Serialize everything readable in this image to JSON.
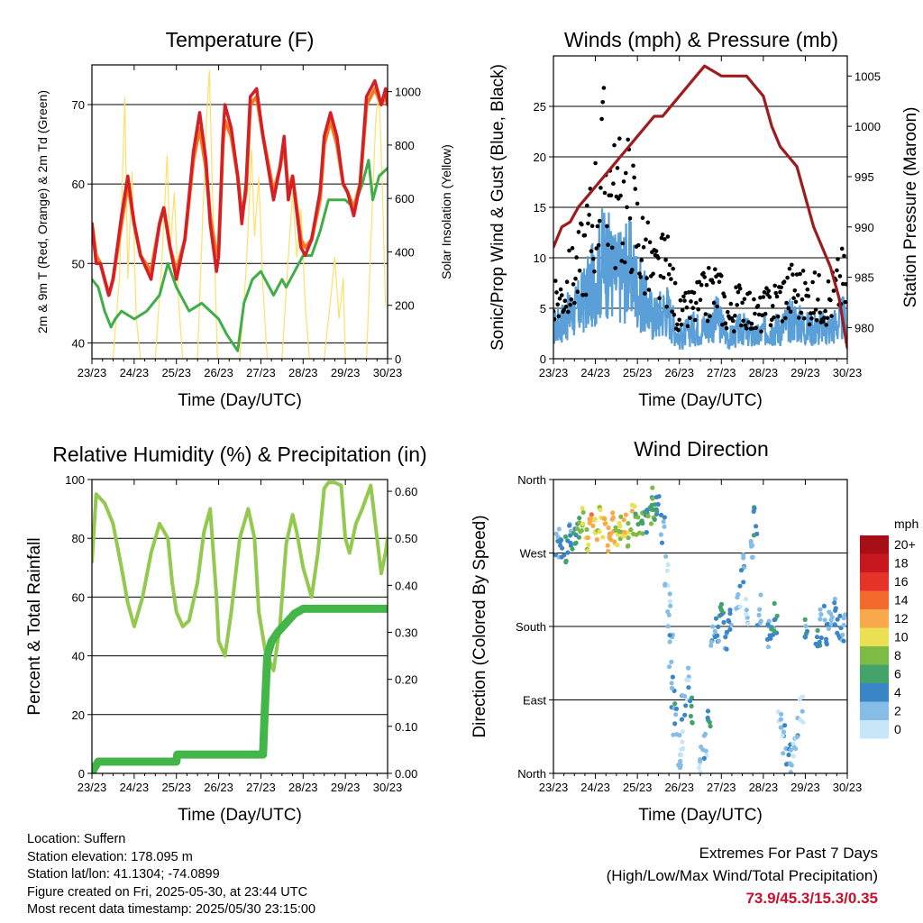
{
  "colors": {
    "temp2m": "#d41f26",
    "temp9m": "#f47a20",
    "dewpoint": "#3fae49",
    "solar": "#ffe066",
    "wind": "#5a9fd8",
    "gust": "#000000",
    "pressure": "#9e1b1e",
    "rh": "#93c94e",
    "rain": "#43b649",
    "extremes": "#c8102e"
  },
  "chart_data": [
    {
      "type": "line",
      "title": "Temperature (F)",
      "xlabel": "Time (Day/UTC)",
      "ylabel": "2m & 9m T (Red, Orange) & 2m Td (Green)",
      "y2label": "Solar Insolation (Yellow)",
      "x_ticks": [
        "23/23",
        "24/23",
        "25/23",
        "26/23",
        "27/23",
        "28/23",
        "29/23",
        "30/23"
      ],
      "xlim": [
        0,
        7
      ],
      "ylim": [
        38,
        75
      ],
      "y_ticks": [
        40,
        50,
        60,
        70
      ],
      "y2lim": [
        0,
        1100
      ],
      "y2_ticks": [
        0,
        200,
        400,
        600,
        800,
        1000
      ],
      "grid": true,
      "series": [
        {
          "key": "t2m",
          "x": [
            0,
            0.1,
            0.2,
            0.4,
            0.5,
            0.7,
            0.85,
            1.0,
            1.15,
            1.4,
            1.6,
            1.7,
            1.85,
            2.0,
            2.2,
            2.4,
            2.55,
            2.7,
            2.8,
            2.95,
            3.0,
            3.1,
            3.15,
            3.3,
            3.45,
            3.55,
            3.65,
            3.75,
            3.9,
            4.05,
            4.3,
            4.45,
            4.55,
            4.65,
            4.75,
            4.95,
            5.05,
            5.2,
            5.4,
            5.5,
            5.65,
            5.8,
            5.95,
            6.05,
            6.2,
            6.35,
            6.5,
            6.7,
            6.85,
            6.95,
            7.0
          ],
          "y": [
            55,
            50,
            50,
            46,
            48,
            56,
            61,
            55,
            51,
            48,
            55,
            57,
            52,
            48,
            53,
            64,
            69,
            63,
            55,
            49,
            51,
            66,
            70,
            67,
            61,
            55,
            60,
            71,
            72,
            66,
            58,
            62,
            66,
            58,
            61,
            52,
            51,
            53,
            59,
            66,
            69,
            66,
            60,
            59,
            56,
            60,
            71,
            73,
            70,
            72,
            70
          ]
        },
        {
          "key": "t9m",
          "x": [
            0,
            0.1,
            0.2,
            0.4,
            0.5,
            0.7,
            0.85,
            1.0,
            1.15,
            1.4,
            1.6,
            1.7,
            1.85,
            2.0,
            2.2,
            2.4,
            2.55,
            2.7,
            2.8,
            2.95,
            3.0,
            3.1,
            3.15,
            3.3,
            3.45,
            3.55,
            3.65,
            3.75,
            3.9,
            4.05,
            4.3,
            4.45,
            4.55,
            4.65,
            4.75,
            4.95,
            5.05,
            5.2,
            5.4,
            5.5,
            5.65,
            5.8,
            5.95,
            6.05,
            6.2,
            6.35,
            6.5,
            6.7,
            6.85,
            6.95,
            7.0
          ],
          "y": [
            55,
            51,
            50,
            46,
            48,
            55,
            60,
            55,
            51,
            49,
            55,
            57,
            52,
            49,
            53,
            63,
            67,
            62,
            56,
            51,
            52,
            65,
            68,
            66,
            61,
            56,
            59,
            70,
            71,
            66,
            59,
            62,
            65,
            59,
            61,
            53,
            52,
            53,
            58,
            65,
            68,
            65,
            60,
            59,
            57,
            60,
            70,
            72,
            70,
            71,
            70
          ]
        },
        {
          "key": "td",
          "x": [
            0,
            0.15,
            0.3,
            0.45,
            0.55,
            0.7,
            1.0,
            1.3,
            1.6,
            1.8,
            2.0,
            2.3,
            2.6,
            2.8,
            3.0,
            3.2,
            3.45,
            3.6,
            3.8,
            4.0,
            4.3,
            4.5,
            4.6,
            4.8,
            5.0,
            5.2,
            5.4,
            5.6,
            5.8,
            6.0,
            6.2,
            6.4,
            6.55,
            6.65,
            6.8,
            7.0
          ],
          "y": [
            48,
            47,
            44,
            42,
            43,
            44,
            43,
            44,
            46,
            50,
            47,
            44,
            45,
            44,
            43,
            41,
            39,
            45,
            48,
            49,
            46,
            48,
            47,
            49,
            51,
            51,
            54,
            58,
            58,
            58,
            57,
            60,
            63,
            58,
            61,
            62
          ]
        },
        {
          "key": "solar",
          "axis": "y2",
          "x": [
            0.5,
            0.65,
            0.78,
            0.85,
            0.95,
            1.05,
            1.15,
            1.5,
            1.65,
            1.78,
            1.85,
            1.95,
            2.05,
            2.15,
            2.5,
            2.62,
            2.72,
            2.78,
            2.85,
            2.92,
            2.97,
            3.5,
            3.65,
            3.78,
            3.85,
            3.95,
            4.05,
            4.15,
            4.5,
            4.62,
            4.75,
            4.85,
            4.95,
            5.05,
            5.15,
            5.5,
            5.65,
            5.75,
            5.85,
            5.95,
            6.0,
            6.5,
            6.6,
            6.72,
            6.8,
            6.88,
            6.95
          ],
          "y": [
            0,
            300,
            980,
            300,
            700,
            150,
            0,
            0,
            350,
            760,
            400,
            620,
            220,
            0,
            0,
            520,
            920,
            1080,
            640,
            300,
            0,
            0,
            330,
            780,
            460,
            680,
            260,
            0,
            0,
            310,
            620,
            380,
            560,
            200,
            0,
            0,
            220,
            380,
            150,
            300,
            0,
            0,
            420,
            900,
            1000,
            620,
            200
          ]
        }
      ]
    },
    {
      "type": "scatter",
      "title": "Winds (mph) & Pressure (mb)",
      "xlabel": "Time (Day/UTC)",
      "ylabel": "Sonic/Prop Wind & Gust (Blue, Black)",
      "y2label": "Station Pressure (Maroon)",
      "x_ticks": [
        "23/23",
        "24/23",
        "25/23",
        "26/23",
        "27/23",
        "28/23",
        "29/23",
        "30/23"
      ],
      "xlim": [
        0,
        7
      ],
      "ylim": [
        0,
        30
      ],
      "y_ticks": [
        0,
        5,
        10,
        15,
        20,
        25
      ],
      "y2lim": [
        976.9,
        1007
      ],
      "y2_ticks": [
        980,
        985,
        990,
        995,
        1000,
        1005
      ],
      "grid": true,
      "series": [
        {
          "key": "wind",
          "x": [
            0,
            0.3,
            0.6,
            0.9,
            1.2,
            1.5,
            1.8,
            2.1,
            2.4,
            2.7,
            3.0,
            3.3,
            3.6,
            3.9,
            4.2,
            4.5,
            4.8,
            5.1,
            5.4,
            5.7,
            6.0,
            6.3,
            6.6,
            6.9,
            7.0
          ],
          "y": [
            3,
            4,
            5,
            7,
            10,
            8,
            9,
            6,
            4,
            5,
            2,
            3,
            3,
            4,
            2,
            3,
            2,
            3,
            3,
            4,
            3,
            3,
            3,
            4,
            3
          ]
        },
        {
          "key": "gust",
          "x": [
            0,
            0.3,
            0.6,
            0.9,
            1.2,
            1.5,
            1.8,
            2.1,
            2.4,
            2.7,
            3.0,
            3.3,
            3.6,
            3.9,
            4.2,
            4.5,
            4.8,
            5.1,
            5.4,
            5.7,
            6.0,
            6.3,
            6.6,
            6.9,
            7.0
          ],
          "y": [
            5,
            7,
            9,
            13,
            19,
            15,
            16,
            11,
            8,
            9,
            4,
            5,
            6,
            7,
            4,
            6,
            4,
            5,
            6,
            7,
            6,
            6,
            6,
            8,
            6
          ]
        },
        {
          "key": "pressure",
          "axis": "y2",
          "x": [
            0,
            0.2,
            0.4,
            0.6,
            0.8,
            1.0,
            1.2,
            1.4,
            1.6,
            1.8,
            2.0,
            2.2,
            2.4,
            2.6,
            2.8,
            3.0,
            3.2,
            3.4,
            3.6,
            3.8,
            4.0,
            4.2,
            4.4,
            4.6,
            4.8,
            5.0,
            5.2,
            5.4,
            5.6,
            5.8,
            6.0,
            6.2,
            6.4,
            6.6,
            6.8,
            7.0
          ],
          "y": [
            988,
            990,
            990.5,
            992,
            993,
            994,
            995,
            996,
            997,
            998,
            999,
            1000,
            1001,
            1001,
            1002,
            1003,
            1004,
            1005,
            1006,
            1005.5,
            1005,
            1005,
            1005,
            1005,
            1004,
            1003,
            1000,
            998,
            997,
            996,
            993,
            990,
            988,
            986,
            983,
            978
          ]
        }
      ]
    },
    {
      "type": "line",
      "title": "Relative Humidity (%) & Precipitation (in)",
      "xlabel": "Time (Day/UTC)",
      "ylabel": "Percent & Total Rainfall",
      "x_ticks": [
        "23/23",
        "24/23",
        "25/23",
        "26/23",
        "27/23",
        "28/23",
        "29/23",
        "30/23"
      ],
      "xlim": [
        0,
        7
      ],
      "ylim": [
        0,
        100
      ],
      "y_ticks": [
        0,
        20,
        40,
        60,
        80,
        100
      ],
      "y2lim": [
        0,
        0.625
      ],
      "y2_ticks": [
        0.0,
        0.1,
        0.2,
        0.3,
        0.4,
        0.5,
        0.6
      ],
      "grid": true,
      "series": [
        {
          "key": "rh",
          "x": [
            0,
            0.1,
            0.3,
            0.5,
            0.7,
            0.85,
            1.0,
            1.2,
            1.4,
            1.6,
            1.8,
            1.9,
            2.0,
            2.15,
            2.3,
            2.5,
            2.65,
            2.8,
            2.95,
            3.0,
            3.15,
            3.3,
            3.5,
            3.7,
            3.85,
            3.95,
            4.1,
            4.3,
            4.45,
            4.6,
            4.75,
            4.85,
            5.0,
            5.2,
            5.35,
            5.5,
            5.6,
            5.75,
            5.9,
            6.0,
            6.1,
            6.25,
            6.4,
            6.6,
            6.75,
            6.85,
            6.95,
            7.0
          ],
          "y": [
            72,
            95,
            92,
            85,
            70,
            58,
            50,
            60,
            75,
            85,
            80,
            65,
            55,
            50,
            52,
            65,
            82,
            90,
            60,
            45,
            40,
            55,
            80,
            90,
            80,
            55,
            42,
            35,
            50,
            78,
            88,
            82,
            70,
            60,
            75,
            97,
            99,
            99,
            98,
            80,
            75,
            85,
            90,
            98,
            80,
            68,
            75,
            80
          ]
        },
        {
          "key": "rain",
          "axis": "y2",
          "x": [
            0,
            0.05,
            0.15,
            2.0,
            2.02,
            3.9,
            4.05,
            4.1,
            4.15,
            4.25,
            4.4,
            4.6,
            4.8,
            5.0,
            7.0
          ],
          "y": [
            0.0,
            0.01,
            0.025,
            0.025,
            0.04,
            0.04,
            0.04,
            0.15,
            0.25,
            0.28,
            0.3,
            0.32,
            0.34,
            0.35,
            0.35
          ]
        }
      ]
    },
    {
      "type": "scatter",
      "title": "Wind Direction",
      "xlabel": "Time (Day/UTC)",
      "ylabel": "Direction (Colored By Speed)",
      "x_ticks": [
        "23/23",
        "24/23",
        "25/23",
        "26/23",
        "27/23",
        "28/23",
        "29/23",
        "30/23"
      ],
      "xlim": [
        0,
        7
      ],
      "ylim": [
        0,
        360
      ],
      "y_ticks": [
        "North",
        "East",
        "South",
        "West",
        "North"
      ],
      "grid": true,
      "series": [
        {
          "key": "direction",
          "x": [
            0.1,
            0.2,
            0.3,
            0.4,
            0.5,
            0.6,
            0.7,
            0.8,
            0.9,
            1.0,
            1.1,
            1.2,
            1.3,
            1.4,
            1.5,
            1.6,
            1.7,
            1.8,
            1.9,
            2.0,
            2.1,
            2.2,
            2.3,
            2.4,
            2.5,
            2.6,
            2.7,
            2.75,
            2.8,
            2.85,
            2.9,
            3.0,
            3.05,
            3.1,
            3.2,
            3.3,
            3.5,
            3.6,
            3.7,
            3.8,
            3.9,
            4.0,
            4.1,
            4.2,
            4.4,
            4.5,
            4.6,
            4.7,
            4.8,
            4.9,
            5.1,
            5.2,
            5.3,
            5.4,
            5.5,
            5.6,
            5.7,
            5.8,
            5.9,
            6.0,
            6.3,
            6.4,
            6.5,
            6.6,
            6.7,
            6.8,
            6.9
          ],
          "y": [
            280,
            275,
            270,
            290,
            280,
            300,
            310,
            290,
            305,
            300,
            310,
            295,
            285,
            300,
            295,
            305,
            300,
            290,
            310,
            300,
            305,
            310,
            320,
            330,
            320,
            300,
            250,
            200,
            150,
            100,
            60,
            20,
            40,
            80,
            110,
            80,
            20,
            30,
            60,
            160,
            180,
            200,
            170,
            190,
            210,
            250,
            200,
            280,
            310,
            200,
            170,
            180,
            190,
            60,
            40,
            30,
            20,
            50,
            80,
            180,
            170,
            185,
            175,
            190,
            195,
            180,
            175
          ],
          "c": [
            3,
            4,
            5,
            4,
            5,
            7,
            9,
            10,
            12,
            11,
            10,
            11,
            13,
            12,
            10,
            9,
            11,
            8,
            10,
            7,
            6,
            5,
            6,
            7,
            4,
            3,
            2,
            2,
            3,
            4,
            2,
            2,
            1,
            3,
            2,
            5,
            1,
            2,
            6,
            3,
            4,
            5,
            3,
            4,
            2,
            3,
            1,
            2,
            4,
            2,
            3,
            4,
            5,
            1,
            2,
            3,
            1,
            2,
            1,
            4,
            5,
            3,
            4,
            2,
            3,
            4,
            3
          ]
        }
      ],
      "colorbar": {
        "title": "mph",
        "labels": [
          "20+",
          "18",
          "16",
          "14",
          "12",
          "10",
          "8",
          "6",
          "4",
          "2",
          "0"
        ],
        "colors": [
          "#a50f15",
          "#c8181f",
          "#e5332a",
          "#f26a2c",
          "#f9a94b",
          "#ebe052",
          "#7dbb45",
          "#43a36a",
          "#3a86c6",
          "#86bde6",
          "#c7e6f7"
        ]
      }
    }
  ],
  "info": {
    "location": "Location: Suffern",
    "elevation": "Station elevation: 178.095 m",
    "latlon": "Station lat/lon: 41.1304; -74.0899",
    "created": "Figure created on Fri, 2025-05-30, at 23:44 UTC",
    "recent": "Most recent data timestamp: 2025/05/30 23:15:00"
  },
  "extremes": {
    "line1": "Extremes For Past 7 Days",
    "line2": "(High/Low/Max Wind/Total Precipitation)",
    "values": "73.9/45.3/15.3/0.35"
  }
}
